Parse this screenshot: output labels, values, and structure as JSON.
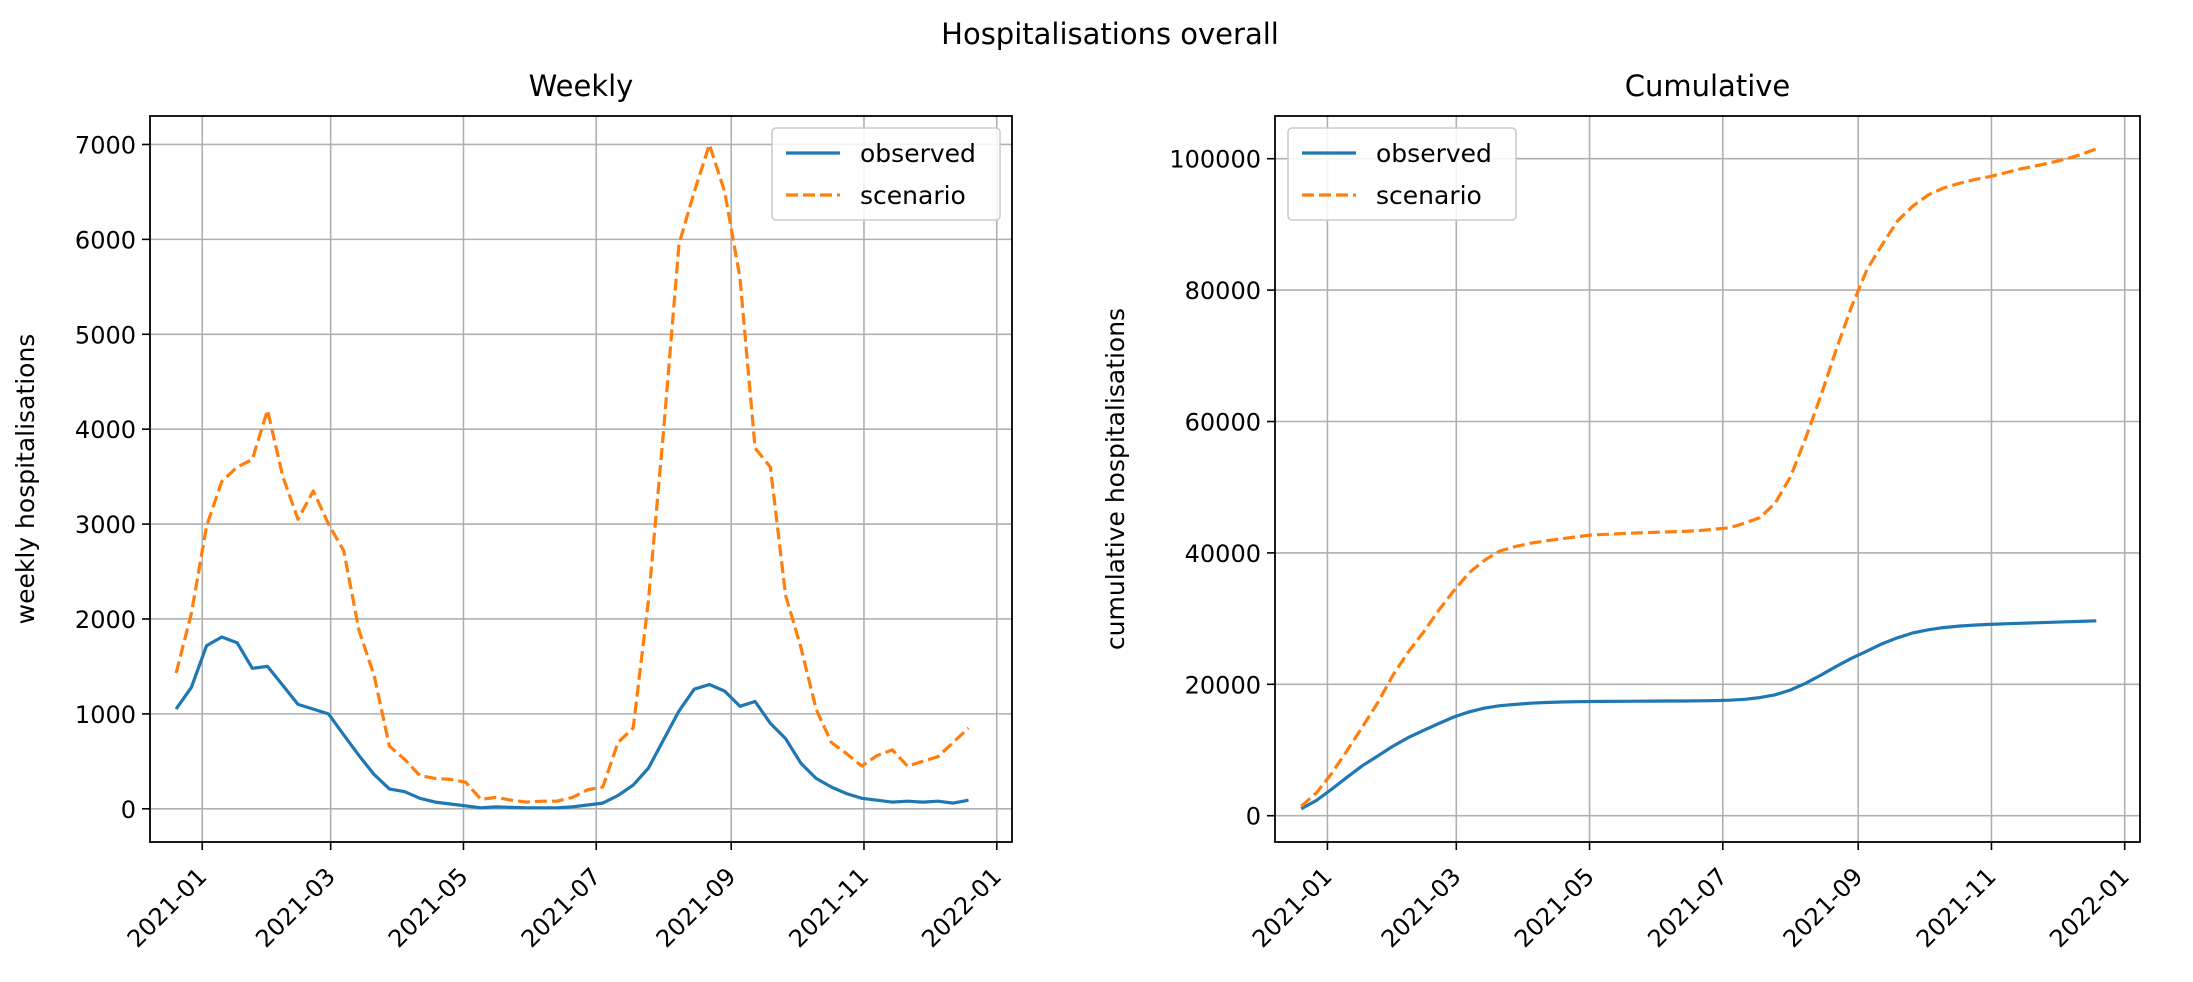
{
  "figure": {
    "suptitle": "Hospitalisations overall"
  },
  "colors": {
    "observed": "#1f77b4",
    "scenario": "#ff7f0e",
    "grid": "#b0b0b0",
    "axis": "#000000"
  },
  "chart_data": [
    {
      "type": "line",
      "title": "Weekly",
      "xlabel": "",
      "ylabel": "weekly hospitalisations",
      "grid": true,
      "legend": "top-right",
      "xlim": [
        "2020-12-08",
        "2022-01-08"
      ],
      "ylim": [
        -350,
        7300
      ],
      "x_ticks": [
        "2021-01",
        "2021-03",
        "2021-05",
        "2021-07",
        "2021-09",
        "2021-11",
        "2022-01"
      ],
      "y_ticks": [
        "0",
        "1000",
        "2000",
        "3000",
        "4000",
        "5000",
        "6000",
        "7000"
      ],
      "x": [
        "2020-12-20",
        "2020-12-27",
        "2021-01-03",
        "2021-01-10",
        "2021-01-17",
        "2021-01-24",
        "2021-01-31",
        "2021-02-07",
        "2021-02-14",
        "2021-02-21",
        "2021-02-28",
        "2021-03-07",
        "2021-03-14",
        "2021-03-21",
        "2021-03-28",
        "2021-04-04",
        "2021-04-11",
        "2021-04-18",
        "2021-04-25",
        "2021-05-02",
        "2021-05-09",
        "2021-05-16",
        "2021-05-23",
        "2021-05-30",
        "2021-06-06",
        "2021-06-13",
        "2021-06-20",
        "2021-06-27",
        "2021-07-04",
        "2021-07-11",
        "2021-07-18",
        "2021-07-25",
        "2021-08-01",
        "2021-08-08",
        "2021-08-15",
        "2021-08-22",
        "2021-08-29",
        "2021-09-05",
        "2021-09-12",
        "2021-09-19",
        "2021-09-26",
        "2021-10-03",
        "2021-10-10",
        "2021-10-17",
        "2021-10-24",
        "2021-10-31",
        "2021-11-07",
        "2021-11-14",
        "2021-11-21",
        "2021-11-28",
        "2021-12-05",
        "2021-12-12",
        "2021-12-19"
      ],
      "series": [
        {
          "name": "observed",
          "style": "solid",
          "values": [
            1050,
            1280,
            1720,
            1810,
            1750,
            1480,
            1500,
            1300,
            1100,
            1050,
            1000,
            780,
            560,
            360,
            210,
            180,
            110,
            70,
            50,
            30,
            10,
            20,
            15,
            10,
            10,
            10,
            20,
            40,
            60,
            140,
            250,
            430,
            730,
            1030,
            1260,
            1310,
            1240,
            1080,
            1130,
            900,
            740,
            480,
            320,
            230,
            160,
            110,
            90,
            70,
            80,
            70,
            80,
            60,
            90
          ]
        },
        {
          "name": "scenario",
          "style": "dashed",
          "values": [
            1430,
            2060,
            2980,
            3450,
            3600,
            3680,
            4200,
            3500,
            3050,
            3350,
            3000,
            2720,
            1880,
            1400,
            660,
            520,
            350,
            320,
            310,
            280,
            100,
            120,
            90,
            70,
            80,
            80,
            120,
            200,
            230,
            700,
            850,
            2200,
            4000,
            5950,
            6500,
            7000,
            6500,
            5600,
            3800,
            3600,
            2250,
            1700,
            1050,
            700,
            580,
            450,
            560,
            620,
            450,
            500,
            550,
            700,
            850
          ]
        }
      ]
    },
    {
      "type": "line",
      "title": "Cumulative",
      "xlabel": "",
      "ylabel": "cumulative hospitalisations",
      "grid": true,
      "legend": "top-left",
      "xlim": [
        "2020-12-08",
        "2022-01-08"
      ],
      "ylim": [
        -4000,
        106500
      ],
      "x_ticks": [
        "2021-01",
        "2021-03",
        "2021-05",
        "2021-07",
        "2021-09",
        "2021-11",
        "2022-01"
      ],
      "y_ticks": [
        "0",
        "20000",
        "40000",
        "60000",
        "80000",
        "100000"
      ],
      "x": [
        "2020-12-20",
        "2020-12-27",
        "2021-01-03",
        "2021-01-10",
        "2021-01-17",
        "2021-01-24",
        "2021-01-31",
        "2021-02-07",
        "2021-02-14",
        "2021-02-21",
        "2021-02-28",
        "2021-03-07",
        "2021-03-14",
        "2021-03-21",
        "2021-03-28",
        "2021-04-04",
        "2021-04-11",
        "2021-04-18",
        "2021-04-25",
        "2021-05-02",
        "2021-05-09",
        "2021-05-16",
        "2021-05-23",
        "2021-05-30",
        "2021-06-06",
        "2021-06-13",
        "2021-06-20",
        "2021-06-27",
        "2021-07-04",
        "2021-07-11",
        "2021-07-18",
        "2021-07-25",
        "2021-08-01",
        "2021-08-08",
        "2021-08-15",
        "2021-08-22",
        "2021-08-29",
        "2021-09-05",
        "2021-09-12",
        "2021-09-19",
        "2021-09-26",
        "2021-10-03",
        "2021-10-10",
        "2021-10-17",
        "2021-10-24",
        "2021-10-31",
        "2021-11-07",
        "2021-11-14",
        "2021-11-21",
        "2021-11-28",
        "2021-12-05",
        "2021-12-12",
        "2021-12-19"
      ],
      "series": [
        {
          "name": "observed",
          "style": "solid",
          "values": [
            1050,
            2330,
            4050,
            5860,
            7610,
            9090,
            10590,
            11890,
            12990,
            14040,
            15040,
            15820,
            16380,
            16740,
            16950,
            17130,
            17240,
            17310,
            17360,
            17390,
            17400,
            17420,
            17435,
            17445,
            17455,
            17465,
            17485,
            17525,
            17585,
            17725,
            17975,
            18405,
            19135,
            20165,
            21425,
            22735,
            23975,
            25055,
            26185,
            27085,
            27825,
            28305,
            28625,
            28855,
            29015,
            29125,
            29215,
            29285,
            29365,
            29435,
            29515,
            29575,
            29665
          ]
        },
        {
          "name": "scenario",
          "style": "dashed",
          "values": [
            1430,
            3490,
            6470,
            9920,
            13520,
            17200,
            21400,
            24900,
            27950,
            31300,
            34300,
            37020,
            38900,
            40300,
            40960,
            41480,
            41830,
            42150,
            42460,
            42740,
            42840,
            42960,
            43050,
            43120,
            43200,
            43280,
            43400,
            43600,
            43830,
            44530,
            45380,
            47580,
            51580,
            57530,
            64030,
            71030,
            77530,
            83130,
            86930,
            90530,
            92780,
            94480,
            95530,
            96230,
            96810,
            97260,
            97820,
            98440,
            98890,
            99390,
            99940,
            100640,
            101490
          ]
        }
      ]
    }
  ]
}
